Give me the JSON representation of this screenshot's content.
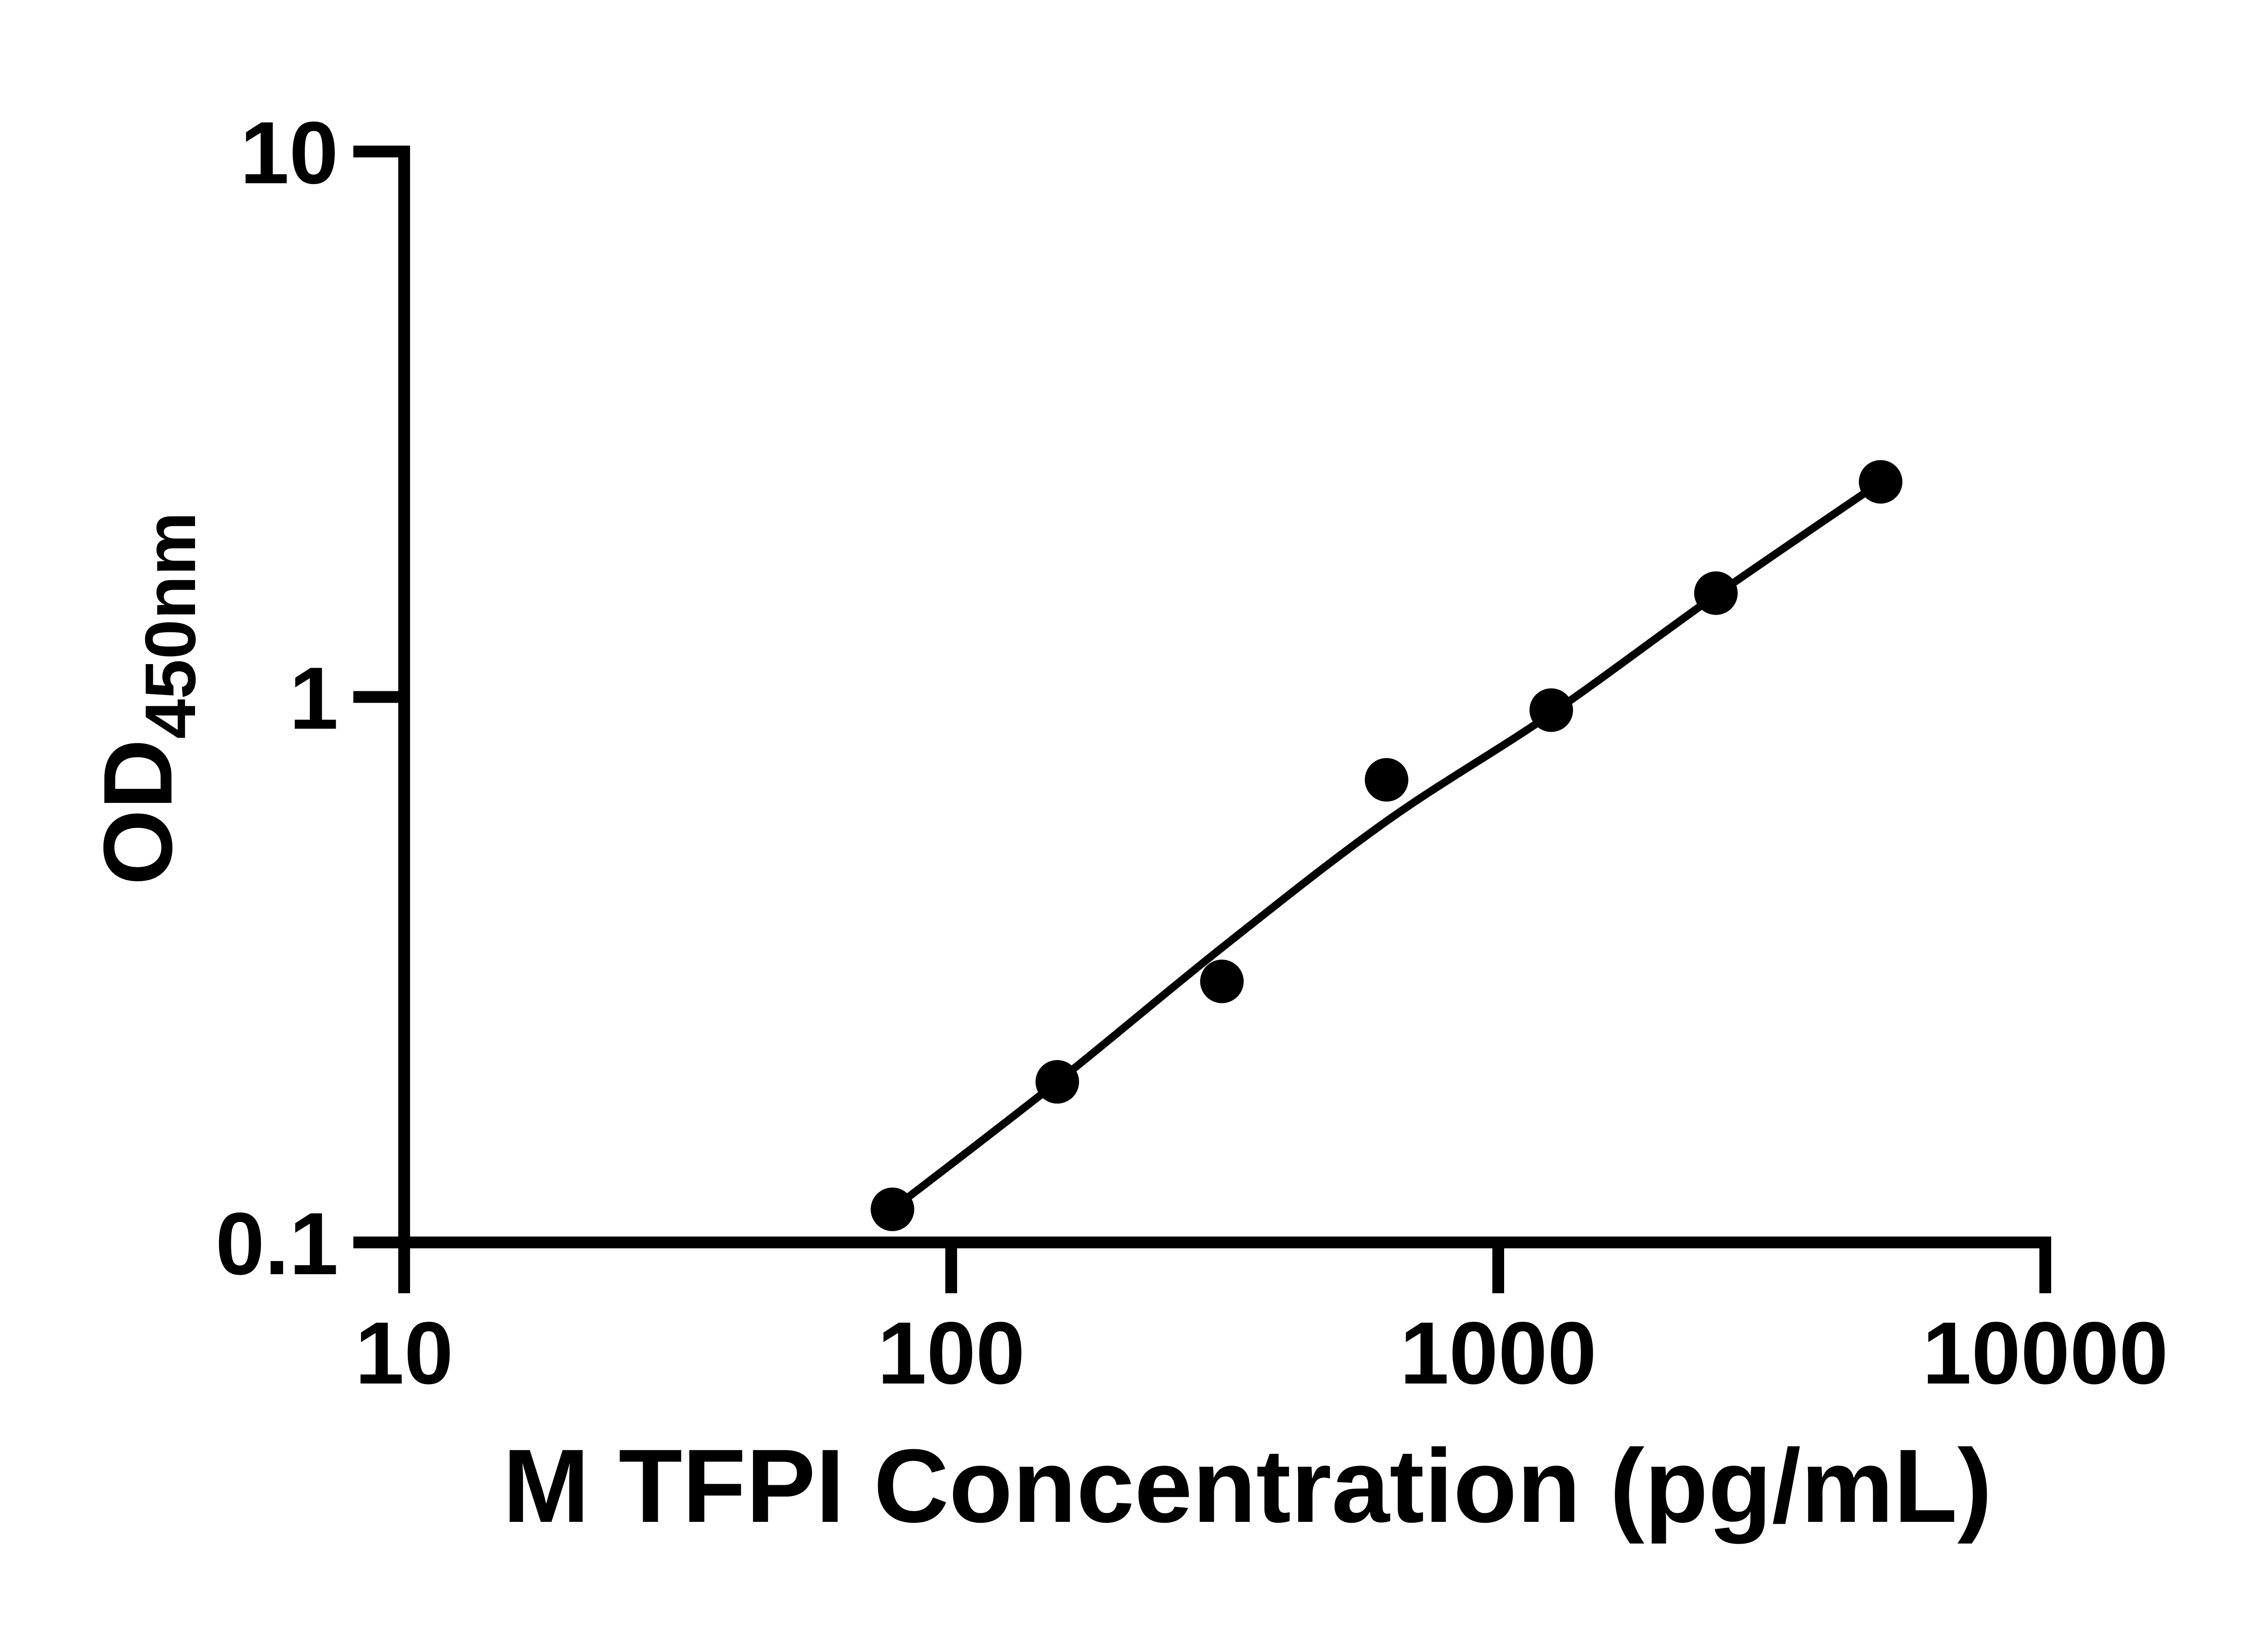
{
  "chart_data": {
    "type": "scatter",
    "title": "",
    "xlabel": "M TFPI Concentration (pg/mL)",
    "ylabel_main": "OD",
    "ylabel_sub": "450nm",
    "x_scale": "log",
    "y_scale": "log",
    "xlim": [
      10,
      10000
    ],
    "ylim": [
      0.1,
      10
    ],
    "grid": false,
    "legend": false,
    "x_ticks": [
      {
        "value": 10,
        "label": "10"
      },
      {
        "value": 100,
        "label": "100"
      },
      {
        "value": 1000,
        "label": "1000"
      },
      {
        "value": 10000,
        "label": "10000"
      }
    ],
    "y_ticks": [
      {
        "value": 10,
        "label": "10"
      },
      {
        "value": 1,
        "label": "1"
      },
      {
        "value": 0.1,
        "label": "0.1"
      }
    ],
    "series": [
      {
        "name": "standard-points",
        "type": "scatter",
        "marker": "filled-circle",
        "color": "#000000",
        "points": [
          [
            78.1,
            0.115
          ],
          [
            156.3,
            0.197
          ],
          [
            312.5,
            0.301
          ],
          [
            625,
            0.705
          ],
          [
            1250,
            0.946
          ],
          [
            2500,
            1.55
          ],
          [
            5000,
            2.48
          ]
        ]
      },
      {
        "name": "fit-curve",
        "type": "line",
        "color": "#000000",
        "points": [
          [
            78.1,
            0.115
          ],
          [
            156.3,
            0.197
          ],
          [
            312.5,
            0.347
          ],
          [
            625,
            0.592
          ],
          [
            1250,
            0.932
          ],
          [
            2500,
            1.537
          ],
          [
            5000,
            2.476
          ]
        ]
      }
    ],
    "colors": {
      "background": "#ffffff",
      "axis": "#000000",
      "points": "#000000",
      "line": "#000000",
      "text": "#000000"
    }
  }
}
